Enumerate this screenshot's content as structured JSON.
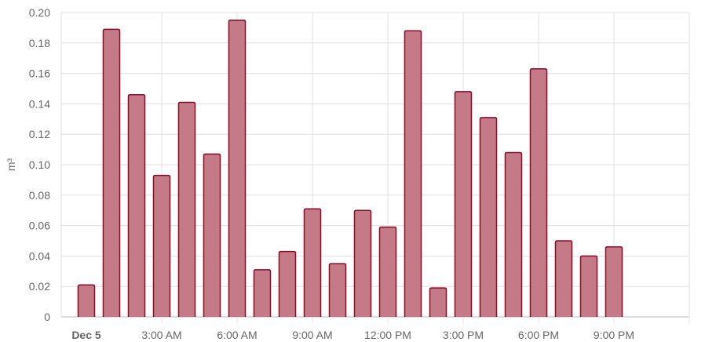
{
  "chart_data": {
    "type": "bar",
    "ylabel": "m³",
    "ylim": [
      0,
      0.2
    ],
    "y_ticks": [
      "0",
      "0.02",
      "0.04",
      "0.06",
      "0.08",
      "0.10",
      "0.12",
      "0.14",
      "0.16",
      "0.18",
      "0.20"
    ],
    "y_tick_values": [
      0,
      0.02,
      0.04,
      0.06,
      0.08,
      0.1,
      0.12,
      0.14,
      0.16,
      0.18,
      0.2
    ],
    "x_range_hours": [
      -1,
      24
    ],
    "x_ticks": [
      {
        "hour": 0,
        "label": "Dec 5",
        "bold": true
      },
      {
        "hour": 3,
        "label": "3:00 AM",
        "bold": false
      },
      {
        "hour": 6,
        "label": "6:00 AM",
        "bold": false
      },
      {
        "hour": 9,
        "label": "9:00 AM",
        "bold": false
      },
      {
        "hour": 12,
        "label": "12:00 PM",
        "bold": false
      },
      {
        "hour": 15,
        "label": "3:00 PM",
        "bold": false
      },
      {
        "hour": 18,
        "label": "6:00 PM",
        "bold": false
      },
      {
        "hour": 21,
        "label": "9:00 PM",
        "bold": false
      }
    ],
    "hours": [
      0,
      1,
      2,
      3,
      4,
      5,
      6,
      7,
      8,
      9,
      10,
      11,
      12,
      13,
      14,
      15,
      16,
      17,
      18,
      19,
      20,
      21
    ],
    "values": [
      0.021,
      0.189,
      0.146,
      0.093,
      0.141,
      0.107,
      0.195,
      0.031,
      0.043,
      0.071,
      0.035,
      0.07,
      0.059,
      0.188,
      0.019,
      0.148,
      0.131,
      0.108,
      0.163,
      0.05,
      0.04,
      0.046
    ],
    "grid": true,
    "legend": "none",
    "colors": {
      "bar_fill": "#c47b87",
      "bar_stroke": "#8b0a25",
      "grid": "#e0e0e0",
      "axis": "#bdbdbd",
      "text": "#666666"
    }
  }
}
